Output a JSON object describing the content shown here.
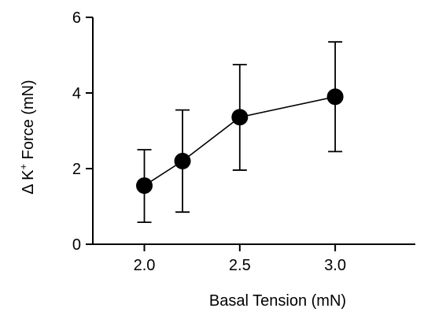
{
  "chart_data": {
    "type": "line",
    "xlabel": "Basal Tension (mN)",
    "ylabel": {
      "prefix": "Δ K",
      "superscript": "+",
      "suffix": " Force (mN)"
    },
    "x_ticks": [
      "2.0",
      "2.5",
      "3.0"
    ],
    "y_ticks": [
      "0",
      "2",
      "4",
      "6"
    ],
    "xlim": [
      1.73,
      3.42
    ],
    "ylim": [
      0,
      6
    ],
    "grid": false,
    "series": [
      {
        "points": [
          {
            "x": 2.0,
            "y": 1.55,
            "err_low": 0.58,
            "err_high": 2.5
          },
          {
            "x": 2.2,
            "y": 2.2,
            "err_low": 0.85,
            "err_high": 3.55
          },
          {
            "x": 2.5,
            "y": 3.36,
            "err_low": 1.96,
            "err_high": 4.75
          },
          {
            "x": 3.0,
            "y": 3.9,
            "err_low": 2.45,
            "err_high": 5.35
          }
        ]
      }
    ]
  }
}
